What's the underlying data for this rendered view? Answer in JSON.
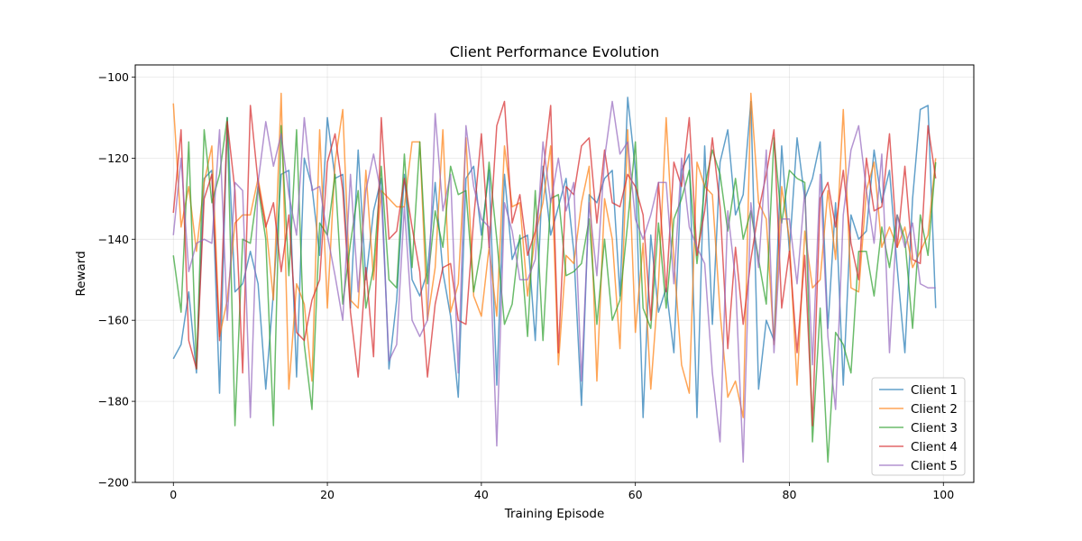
{
  "chart_data": {
    "type": "line",
    "title": "Client Performance Evolution",
    "xlabel": "Training Episode",
    "ylabel": "Reward",
    "xlim": [
      -4.95,
      103.95
    ],
    "ylim": [
      -200,
      -97
    ],
    "xticks": [
      0,
      20,
      40,
      60,
      80,
      100
    ],
    "yticks": [
      -200,
      -180,
      -160,
      -140,
      -120,
      -100
    ],
    "xtick_labels": [
      "0",
      "20",
      "40",
      "60",
      "80",
      "100"
    ],
    "ytick_labels": [
      "−200",
      "−180",
      "−160",
      "−140",
      "−120",
      "−100"
    ],
    "grid": true,
    "legend_position": "lower-right",
    "line_alpha": 0.7,
    "series": [
      {
        "name": "Client 1",
        "color": "#1f77b4",
        "values": [
          -169.5,
          -166,
          -153,
          -173,
          -125,
          -123,
          -178,
          -110,
          -153,
          -151,
          -143,
          -151,
          -177,
          -153,
          -124,
          -123,
          -174,
          -120,
          -127,
          -144,
          -110,
          -125,
          -124,
          -157,
          -118,
          -150,
          -133,
          -125,
          -172,
          -155,
          -124,
          -150,
          -154,
          -148,
          -126,
          -148,
          -159,
          -179,
          -125,
          -122,
          -139,
          -123,
          -176,
          -124,
          -145,
          -140,
          -139,
          -165,
          -122,
          -139,
          -132,
          -125,
          -143,
          -181,
          -129,
          -131,
          -125,
          -123,
          -154,
          -105,
          -123,
          -184,
          -139,
          -158,
          -152,
          -168,
          -123,
          -119,
          -184,
          -117,
          -161,
          -121,
          -113,
          -134,
          -129,
          -106,
          -177,
          -160,
          -165,
          -117,
          -143,
          -115,
          -130,
          -125,
          -116,
          -162,
          -131,
          -176,
          -134,
          -140,
          -138,
          -118,
          -131,
          -123,
          -147,
          -168,
          -130,
          -108,
          -107,
          -157
        ],
        "value_precision": "approximate, read from gridlines"
      },
      {
        "name": "Client 2",
        "color": "#ff7f0e",
        "values": [
          -106.5,
          -137,
          -127,
          -143,
          -126,
          -117,
          -164,
          -155,
          -136,
          -134,
          -134,
          -125,
          -136,
          -155,
          -104,
          -177,
          -151,
          -156,
          -175,
          -113,
          -157,
          -121,
          -108,
          -155,
          -157,
          -123,
          -150,
          -128,
          -130,
          -132,
          -132,
          -116,
          -116,
          -160,
          -147,
          -113,
          -158,
          -151,
          -115,
          -154,
          -159,
          -142,
          -159,
          -117,
          -132,
          -131,
          -154,
          -139,
          -131,
          -117,
          -171,
          -144,
          -146,
          -131,
          -122,
          -175,
          -130,
          -140,
          -167,
          -113,
          -163,
          -141,
          -177,
          -151,
          -110,
          -145,
          -171,
          -178,
          -121,
          -127,
          -129,
          -158,
          -179,
          -175,
          -184,
          -104,
          -131,
          -135,
          -166,
          -127,
          -140,
          -176,
          -138,
          -152,
          -150,
          -128,
          -145,
          -108,
          -152,
          -153,
          -128,
          -121,
          -142,
          -137,
          -142,
          -137,
          -147,
          -143,
          -139,
          -120
        ],
        "value_precision": "approximate, read from gridlines"
      },
      {
        "name": "Client 3",
        "color": "#2ca02c",
        "values": [
          -144,
          -158,
          -116,
          -172,
          -113,
          -131,
          -124,
          -110,
          -186,
          -140,
          -141,
          -127,
          -140,
          -186,
          -112,
          -149,
          -113,
          -166,
          -182,
          -136,
          -139,
          -124,
          -156,
          -141,
          -128,
          -157,
          -147,
          -122,
          -150,
          -152,
          -119,
          -147,
          -116,
          -151,
          -133,
          -142,
          -122,
          -129,
          -128,
          -153,
          -142,
          -121,
          -140,
          -161,
          -156,
          -139,
          -164,
          -128,
          -165,
          -130,
          -129,
          -149,
          -148,
          -146,
          -135,
          -161,
          -140,
          -160,
          -155,
          -136,
          -116,
          -157,
          -162,
          -136,
          -157,
          -135,
          -130,
          -123,
          -146,
          -127,
          -118,
          -124,
          -138,
          -125,
          -140,
          -133,
          -145,
          -156,
          -115,
          -136,
          -123,
          -125,
          -126,
          -190,
          -157,
          -195,
          -163,
          -166,
          -173,
          -143,
          -143,
          -154,
          -137,
          -147,
          -134,
          -140,
          -162,
          -134,
          -144,
          -121
        ],
        "value_precision": "approximate, read from gridlines"
      },
      {
        "name": "Client 4",
        "color": "#d62728",
        "values": [
          -133.5,
          -113,
          -165,
          -172,
          -130,
          -124,
          -165,
          -111,
          -128,
          -173,
          -107,
          -126,
          -137,
          -131,
          -148,
          -134,
          -163,
          -165,
          -155,
          -150,
          -121,
          -114,
          -128,
          -158,
          -174,
          -147,
          -169,
          -110,
          -140,
          -138,
          -125,
          -137,
          -148,
          -174,
          -156,
          -147,
          -146,
          -160,
          -161,
          -135,
          -114,
          -142,
          -112,
          -106,
          -136,
          -129,
          -144,
          -138,
          -124,
          -107,
          -168,
          -127,
          -129,
          -117,
          -115,
          -136,
          -118,
          -131,
          -132,
          -124,
          -127,
          -134,
          -160,
          -126,
          -153,
          -121,
          -127,
          -110,
          -144,
          -133,
          -115,
          -132,
          -167,
          -142,
          -161,
          -145,
          -133,
          -124,
          -113,
          -157,
          -143,
          -168,
          -144,
          -186,
          -130,
          -126,
          -137,
          -123,
          -141,
          -150,
          -120,
          -133,
          -132,
          -114,
          -142,
          -122,
          -145,
          -146,
          -112,
          -125
        ],
        "value_precision": "approximate, read from gridlines"
      },
      {
        "name": "Client 5",
        "color": "#9467bd",
        "values": [
          -139,
          -120,
          -148,
          -141,
          -140,
          -141,
          -113,
          -160,
          -126,
          -128,
          -184,
          -126,
          -111,
          -122,
          -114,
          -129,
          -139,
          -110,
          -128,
          -127,
          -139,
          -149,
          -160,
          -124,
          -153,
          -128,
          -119,
          -129,
          -170,
          -166,
          -132,
          -160,
          -164,
          -160,
          -109,
          -133,
          -124,
          -173,
          -112,
          -127,
          -135,
          -137,
          -191,
          -131,
          -138,
          -150,
          -150,
          -145,
          -116,
          -131,
          -120,
          -133,
          -126,
          -175,
          -131,
          -149,
          -120,
          -106,
          -119,
          -116,
          -135,
          -140,
          -134,
          -126,
          -126,
          -151,
          -120,
          -137,
          -142,
          -146,
          -173,
          -190,
          -133,
          -150,
          -195,
          -131,
          -147,
          -118,
          -168,
          -135,
          -135,
          -151,
          -128,
          -171,
          -124,
          -164,
          -182,
          -134,
          -118,
          -112,
          -128,
          -141,
          -119,
          -168,
          -134,
          -142,
          -136,
          -151,
          -152,
          -152
        ],
        "value_precision": "approximate, read from gridlines"
      }
    ]
  }
}
